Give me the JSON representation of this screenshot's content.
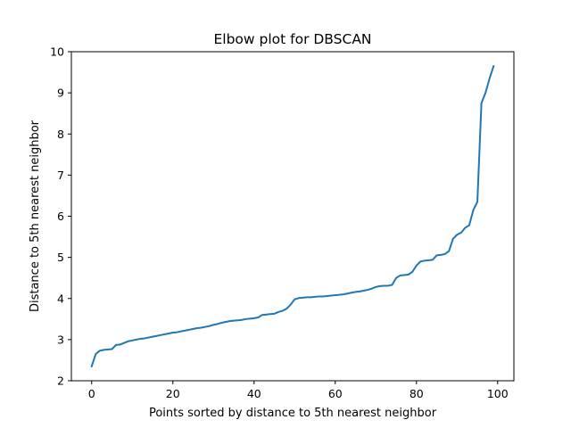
{
  "chart_data": {
    "type": "line",
    "title": "Elbow plot for DBSCAN",
    "xlabel": "Points sorted by distance to 5th nearest neighbor",
    "ylabel": "Distance to 5th nearest neighbor",
    "xlim": [
      -5,
      104
    ],
    "ylim": [
      2,
      10
    ],
    "xticks": [
      "0",
      "20",
      "40",
      "60",
      "80",
      "100"
    ],
    "yticks": [
      "2",
      "3",
      "4",
      "5",
      "6",
      "7",
      "8",
      "9",
      "10"
    ],
    "grid": false,
    "line_color": "#1f77b4",
    "series": [
      {
        "x": [
          0,
          1,
          2,
          3,
          4,
          5,
          6,
          7,
          8,
          9,
          10,
          11,
          12,
          13,
          14,
          15,
          16,
          17,
          18,
          19,
          20,
          21,
          22,
          23,
          24,
          25,
          26,
          27,
          28,
          29,
          30,
          31,
          32,
          33,
          34,
          35,
          36,
          37,
          38,
          39,
          40,
          41,
          42,
          43,
          44,
          45,
          46,
          47,
          48,
          49,
          50,
          51,
          52,
          53,
          54,
          55,
          56,
          57,
          58,
          59,
          60,
          61,
          62,
          63,
          64,
          65,
          66,
          67,
          68,
          69,
          70,
          71,
          72,
          73,
          74,
          75,
          76,
          77,
          78,
          79,
          80,
          81,
          82,
          83,
          84,
          85,
          86,
          87,
          88,
          89,
          90,
          91,
          92,
          93,
          94,
          95,
          96,
          97,
          98,
          99
        ],
        "values": [
          2.35,
          2.65,
          2.73,
          2.75,
          2.76,
          2.77,
          2.87,
          2.88,
          2.92,
          2.96,
          2.98,
          3.0,
          3.02,
          3.03,
          3.05,
          3.07,
          3.09,
          3.11,
          3.13,
          3.15,
          3.17,
          3.18,
          3.2,
          3.22,
          3.24,
          3.26,
          3.28,
          3.29,
          3.31,
          3.33,
          3.36,
          3.38,
          3.41,
          3.43,
          3.45,
          3.46,
          3.47,
          3.48,
          3.5,
          3.51,
          3.52,
          3.54,
          3.6,
          3.61,
          3.62,
          3.63,
          3.67,
          3.7,
          3.75,
          3.85,
          3.98,
          4.01,
          4.02,
          4.03,
          4.03,
          4.04,
          4.05,
          4.05,
          4.06,
          4.07,
          4.08,
          4.09,
          4.1,
          4.12,
          4.14,
          4.16,
          4.17,
          4.19,
          4.21,
          4.24,
          4.28,
          4.3,
          4.31,
          4.31,
          4.33,
          4.5,
          4.56,
          4.57,
          4.58,
          4.65,
          4.8,
          4.9,
          4.92,
          4.93,
          4.94,
          5.05,
          5.06,
          5.08,
          5.15,
          5.45,
          5.55,
          5.6,
          5.72,
          5.78,
          6.15,
          6.35,
          8.75,
          9.0,
          9.35,
          9.65
        ]
      }
    ]
  }
}
